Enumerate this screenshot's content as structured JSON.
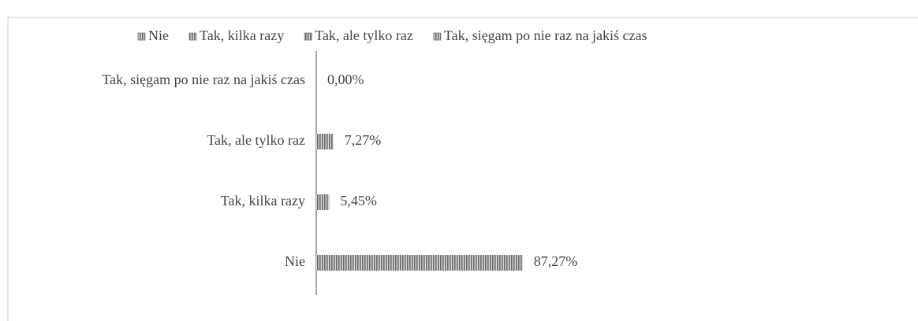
{
  "chart_data": {
    "type": "bar",
    "orientation": "horizontal",
    "categories": [
      "Nie",
      "Tak, kilka razy",
      "Tak, ale tylko raz",
      "Tak, sięgam po nie raz na jakiś czas"
    ],
    "values": [
      87.27,
      5.45,
      7.27,
      0
    ],
    "value_labels": [
      "87,27%",
      "5,45%",
      "7,27%",
      "0,00%"
    ],
    "color": "#7a7a7a",
    "xlim": [
      0,
      100
    ],
    "legend": "top"
  }
}
